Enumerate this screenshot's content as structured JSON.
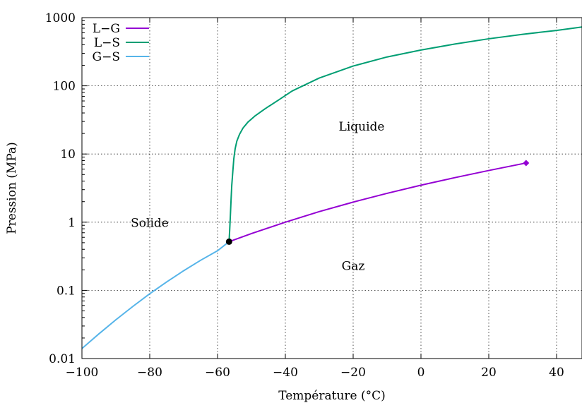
{
  "chart_data": {
    "type": "line",
    "title": "",
    "xlabel": "Température (°C)",
    "ylabel": "Pression (MPa)",
    "xlim": [
      -100,
      47.5
    ],
    "ylim": [
      0.01,
      1000
    ],
    "yscale": "log",
    "grid": true,
    "legend_position": "top-left",
    "x_ticks": [
      -100,
      -80,
      -60,
      -40,
      -20,
      0,
      20,
      40
    ],
    "x_tick_labels": [
      "−100",
      "−80",
      "−60",
      "−40",
      "−20",
      "0",
      "20",
      "40"
    ],
    "y_ticks": [
      0.01,
      0.1,
      1,
      10,
      100,
      1000
    ],
    "y_tick_labels": [
      "0.01",
      "0.1",
      "1",
      "10",
      "100",
      "1000"
    ],
    "series": [
      {
        "name": "L−G",
        "color": "#9400d3",
        "x": [
          -56.6,
          -50,
          -40,
          -30,
          -20,
          -10,
          0,
          10,
          20,
          31
        ],
        "y": [
          0.518,
          0.68,
          1.0,
          1.43,
          1.97,
          2.65,
          3.49,
          4.5,
          5.73,
          7.38
        ],
        "end_marker": "diamond"
      },
      {
        "name": "L−S",
        "color": "#009e73",
        "x": [
          -56.6,
          -56.4,
          -56.2,
          -56.0,
          -55.8,
          -55.5,
          -55.2,
          -54.8,
          -54.3,
          -53.5,
          -52.5,
          -51.0,
          -49.0,
          -46.0,
          -42.0,
          -38.0,
          -30.0,
          -20.0,
          -10.0,
          0.0,
          10.0,
          20.0,
          30.0,
          40.0,
          47.5
        ],
        "y": [
          0.518,
          0.8,
          1.3,
          2.2,
          3.5,
          5.5,
          8.5,
          12.0,
          15.5,
          19.5,
          24.0,
          29.5,
          36.0,
          46.0,
          62.0,
          84.0,
          130,
          195,
          265,
          335,
          410,
          490,
          570,
          650,
          730
        ]
      },
      {
        "name": "G−S",
        "color": "#56b4e9",
        "x": [
          -100,
          -95,
          -90,
          -85,
          -80,
          -75,
          -70,
          -65,
          -60,
          -56.6
        ],
        "y": [
          0.014,
          0.023,
          0.037,
          0.058,
          0.0893,
          0.133,
          0.194,
          0.276,
          0.381,
          0.518
        ]
      }
    ],
    "points": [
      {
        "x": -56.6,
        "y": 0.518,
        "color": "#000000"
      }
    ],
    "annotations": [
      {
        "text": "Liquide",
        "x": -17.5,
        "y": 22
      },
      {
        "text": "Solide",
        "x": -80,
        "y": 0.85
      },
      {
        "text": "Gaz",
        "x": -20,
        "y": 0.2
      }
    ]
  }
}
